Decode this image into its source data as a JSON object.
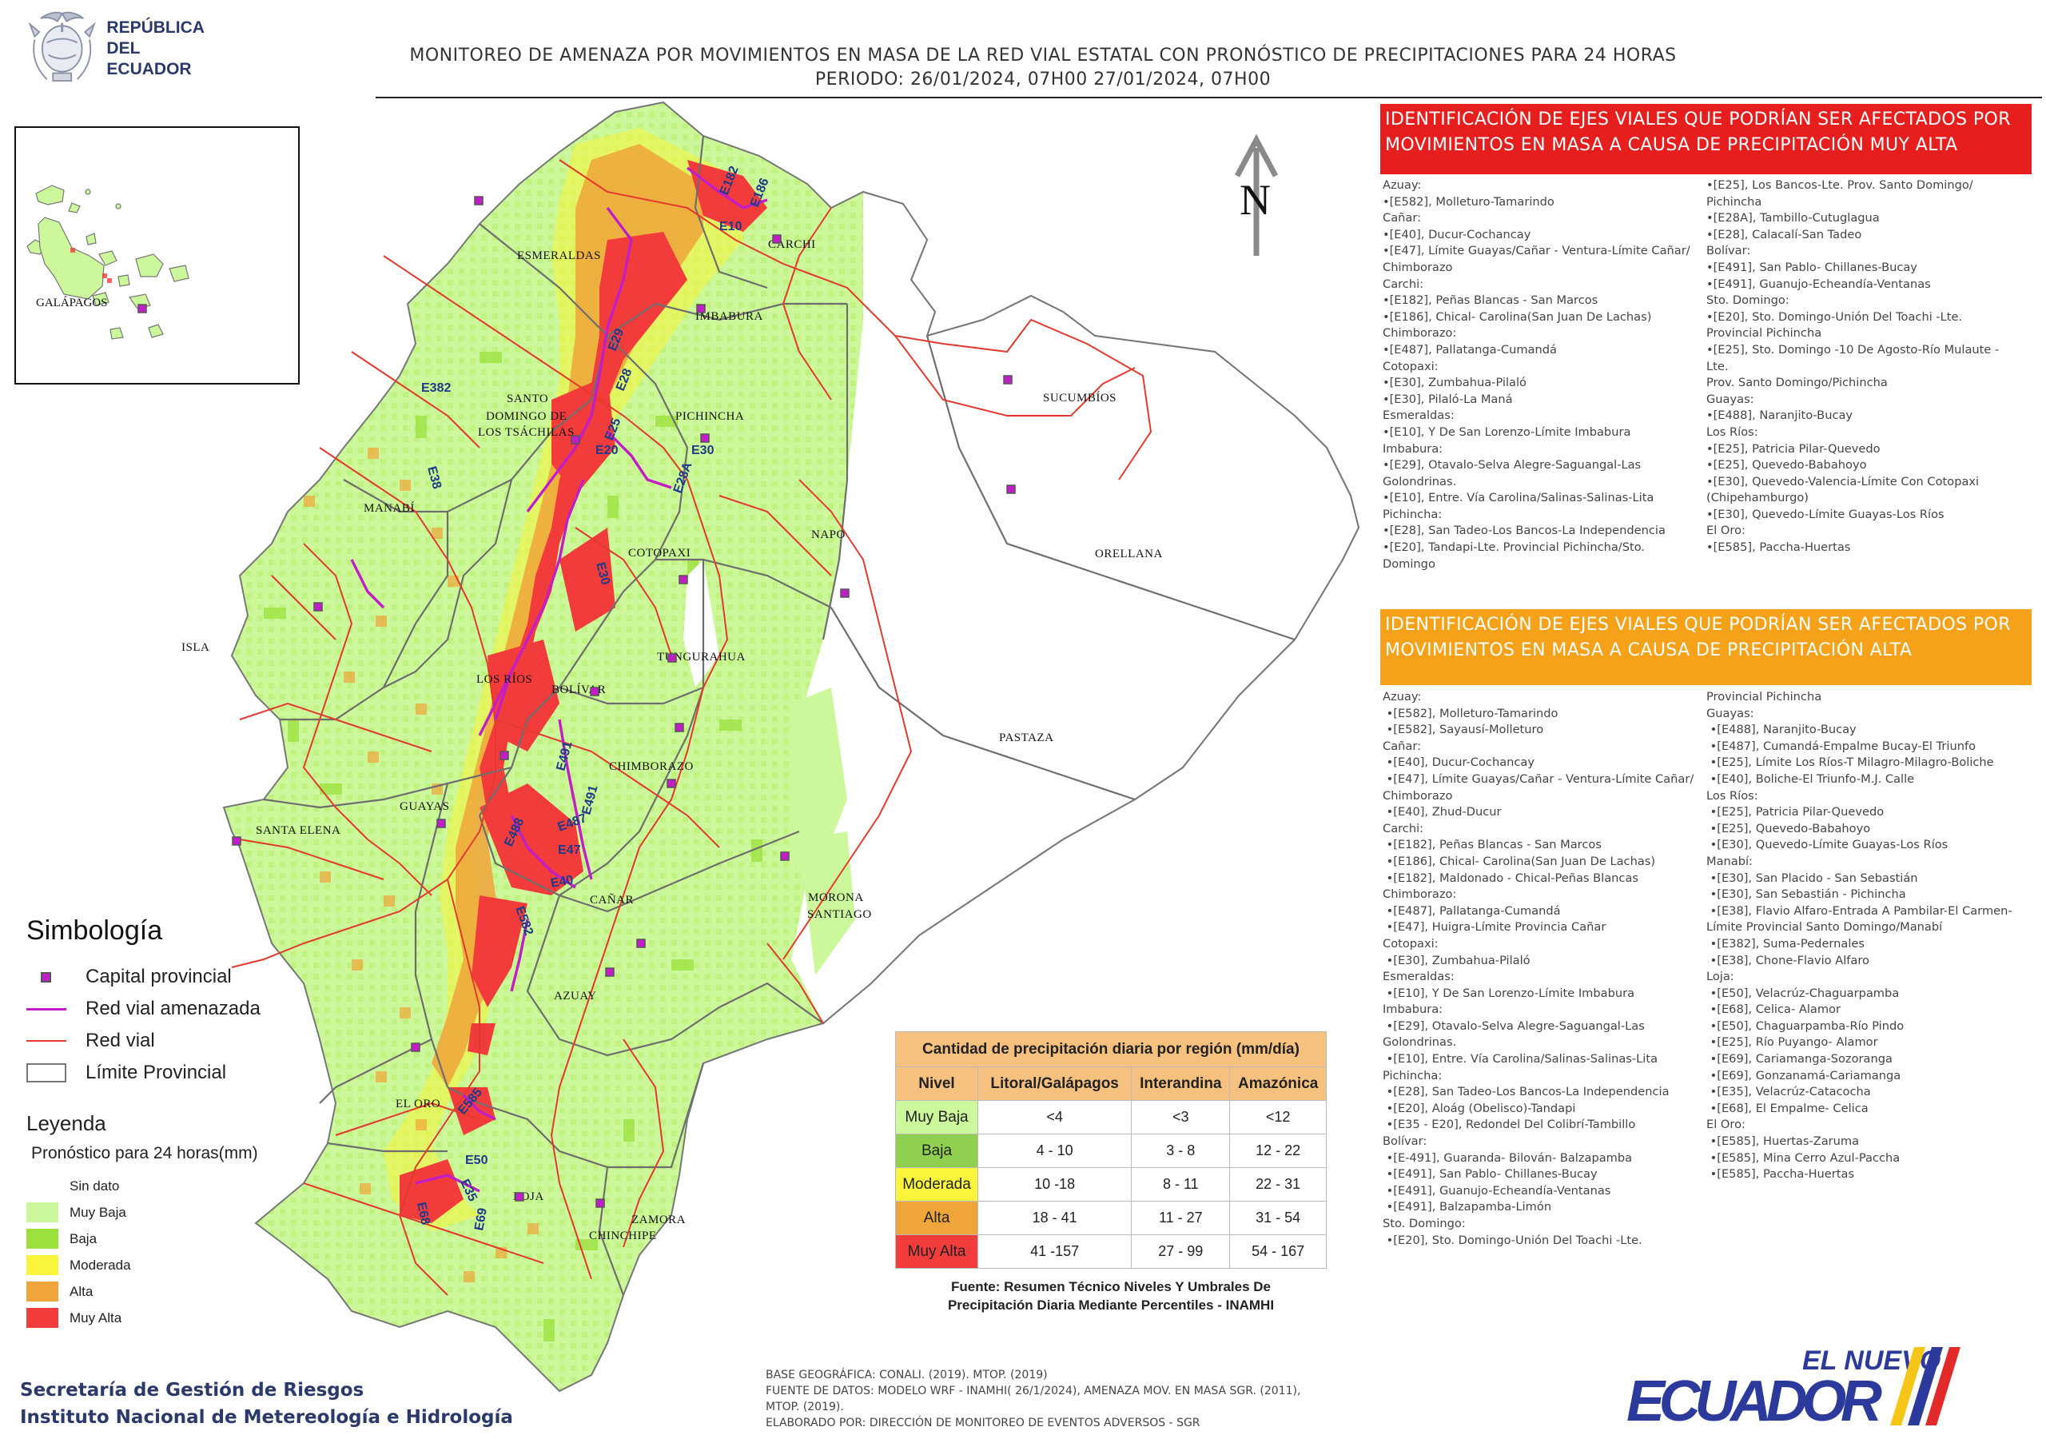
{
  "header": {
    "logo_line1": "REPÚBLICA",
    "logo_line2": "DEL ECUADOR",
    "title_line1": "MONITOREO DE AMENAZA POR MOVIMIENTOS EN MASA DE LA RED VIAL  ESTATAL  CON PRONÓSTICO  DE  PRECIPITACIONES PARA 24 HORAS",
    "title_line2": "PERIODO: 26/01/2024, 07H00 27/01/2024, 07H00"
  },
  "map": {
    "north_label": "N",
    "galapagos_label": "GALÁPAGOS",
    "isla_label": "ISLA",
    "provinces": [
      "ESMERALDAS",
      "CARCHI",
      "IMBABURA",
      "SUCUMBÍOS",
      "SANTO",
      "DOMINGO DE",
      "LOS TSÁCHILAS",
      "PICHINCHA",
      "NAPO",
      "ORELLANA",
      "MANABÍ",
      "COTOPAXI",
      "TUNGURAHUA",
      "LOS RÍOS",
      "BOLÍVAR",
      "SANTA ELENA",
      "PASTAZA",
      "GUAYAS",
      "CHIMBORAZO",
      "CAÑAR",
      "MORONA",
      "SANTIAGO",
      "AZUAY",
      "EL ORO",
      "LOJA",
      "ZAMORA",
      "CHINCHIPE"
    ],
    "road_labels": [
      "E182",
      "E186",
      "E10",
      "E29",
      "E28",
      "E382",
      "E25",
      "E38",
      "E20",
      "E30",
      "E28A",
      "E30",
      "E491",
      "E491",
      "E488",
      "E487",
      "E47",
      "E40",
      "E582",
      "E585",
      "E50",
      "E35",
      "E68",
      "E69"
    ]
  },
  "symbology": {
    "title": "Simbología",
    "items": [
      {
        "label": "Capital provincial",
        "kind": "capital"
      },
      {
        "label": "Red vial amenazada",
        "kind": "threat-road"
      },
      {
        "label": "Red vial",
        "kind": "road"
      },
      {
        "label": "Límite Provincial",
        "kind": "boundary"
      }
    ]
  },
  "legend": {
    "title": "Leyenda",
    "subtitle": "Pronóstico para 24 horas(mm)",
    "items": [
      {
        "label": "Sin dato",
        "color": "#ffffff"
      },
      {
        "label": "Muy Baja",
        "color": "#ccf79a"
      },
      {
        "label": "Baja",
        "color": "#9be03c"
      },
      {
        "label": "Moderada",
        "color": "#f8f53a"
      },
      {
        "label": "Alta",
        "color": "#f0a53a"
      },
      {
        "label": "Muy Alta",
        "color": "#f23c3c"
      }
    ]
  },
  "precip_table": {
    "caption": "Cantidad de precipitación diaria por región (mm/día)",
    "headers": [
      "Nivel",
      "Litoral/Galápagos",
      "Interandina",
      "Amazónica"
    ],
    "rows": [
      {
        "level": "Muy Baja",
        "color": "#ccf79a",
        "values": [
          "<4",
          "<3",
          "<12"
        ]
      },
      {
        "level": "Baja",
        "color": "#8fd14f",
        "values": [
          "4 - 10",
          "3 - 8",
          "12 - 22"
        ]
      },
      {
        "level": "Moderada",
        "color": "#f8f53a",
        "values": [
          "10 -18",
          "8 - 11",
          "22 - 31"
        ]
      },
      {
        "level": "Alta",
        "color": "#f0a53a",
        "values": [
          "18 - 41",
          "11 - 27",
          "31 - 54"
        ]
      },
      {
        "level": "Muy Alta",
        "color": "#f23c3c",
        "values": [
          "41 -157",
          "27 - 99",
          "54 - 167"
        ]
      }
    ],
    "source_line1": "Fuente: Resumen Técnico Niveles Y Umbrales De",
    "source_line2": "Precipitación Diaria Mediante Percentiles - INAMHI"
  },
  "footer": {
    "org_line1": "Secretaría de Gestión de Riesgos",
    "org_line2": "Instituto Nacional de Metereología e Hidrología",
    "base_line1": "BASE GEOGRÁFICA: CONALI. (2019). MTOP. (2019)",
    "base_line2": "FUENTE DE DATOS: MODELO WRF - INAMHI( 26/1/2024),  AMENAZA MOV. EN MASA SGR. (2011),",
    "base_line3": "MTOP. (2019).",
    "base_line4": "ELABORADO POR: DIRECCIÓN DE MONITOREO DE EVENTOS ADVERSOS - SGR",
    "brand_top": "EL NUEVO",
    "brand_main": "ECUADOR"
  },
  "panel_very_high": {
    "title": "IDENTIFICACIÓN DE EJES VIALES QUE PODRÍAN SER AFECTADOS POR MOVIMIENTOS EN MASA A CAUSA DE PRECIPITACIÓN MUY ALTA",
    "col1": [
      "Azuay:",
      "•[E582], Molleturo-Tamarindo",
      "Cañar:",
      "•[E40], Ducur-Cochancay",
      "•[E47], Límite Guayas/Cañar - Ventura-Límite Cañar/",
      "Chimborazo",
      "Carchi:",
      "•[E182], Peñas Blancas - San Marcos",
      "•[E186], Chical- Carolina(San Juan De Lachas)",
      "Chimborazo:",
      "•[E487], Pallatanga-Cumandá",
      "Cotopaxi:",
      "•[E30], Zumbahua-Pilaló",
      "•[E30], Pilaló-La Maná",
      "Esmeraldas:",
      "•[E10], Y De San Lorenzo-Límite Imbabura",
      "Imbabura:",
      "•[E29], Otavalo-Selva Alegre-Saguangal-Las",
      "Golondrinas.",
      "•[E10], Entre. Vía Carolina/Salinas-Salinas-Lita",
      "Pichincha:",
      "•[E28], San Tadeo-Los Bancos-La Independencia",
      "•[E20], Tandapi-Lte. Provincial Pichincha/Sto.",
      "Domingo"
    ],
    "col2": [
      "•[E25], Los Bancos-Lte. Prov. Santo Domingo/",
      "Pichincha",
      "•[E28A], Tambillo-Cutuglagua",
      "•[E28], Calacalí-San Tadeo",
      "Bolívar:",
      "•[E491], San Pablo- Chillanes-Bucay",
      "•[E491], Guanujo-Echeandía-Ventanas",
      "Sto. Domingo:",
      "•[E20], Sto. Domingo-Unión Del Toachi -Lte.",
      "Provincial Pichincha",
      "•[E25], Sto. Domingo -10 De Agosto-Río Mulaute - Lte.",
      "Prov. Santo Domingo/Pichincha",
      "Guayas:",
      "•[E488], Naranjito-Bucay",
      "Los Ríos:",
      "•[E25], Patricia Pilar-Quevedo",
      "•[E25], Quevedo-Babahoyo",
      "•[E30], Quevedo-Valencia-Límite Con Cotopaxi",
      "(Chipehamburgo)",
      "•[E30], Quevedo-Límite Guayas-Los Ríos",
      "El Oro:",
      "•[E585], Paccha-Huertas"
    ]
  },
  "panel_high": {
    "title": "IDENTIFICACIÓN DE EJES VIALES QUE PODRÍAN SER AFECTADOS POR MOVIMIENTOS EN MASA A CAUSA DE PRECIPITACIÓN  ALTA",
    "col1": [
      "Azuay:",
      " •[E582], Molleturo-Tamarindo",
      " •[E582], Sayausí-Molleturo",
      "Cañar:",
      " •[E40], Ducur-Cochancay",
      " •[E47], Límite Guayas/Cañar - Ventura-Límite Cañar/",
      "Chimborazo",
      " •[E40], Zhud-Ducur",
      "Carchi:",
      " •[E182], Peñas Blancas - San Marcos",
      " •[E186], Chical- Carolina(San Juan De Lachas)",
      " •[E182], Maldonado - Chical-Peñas Blancas",
      "Chimborazo:",
      " •[E487], Pallatanga-Cumandá",
      " •[E47], Huigra-Límite Provincia Cañar",
      "Cotopaxi:",
      " •[E30], Zumbahua-Pilaló",
      "Esmeraldas:",
      " •[E10], Y De San Lorenzo-Límite Imbabura",
      "Imbabura:",
      " •[E29], Otavalo-Selva Alegre-Saguangal-Las",
      "Golondrinas.",
      " •[E10], Entre. Vía Carolina/Salinas-Salinas-Lita",
      "Pichincha:",
      " •[E28], San Tadeo-Los Bancos-La Independencia",
      " •[E20], Aloág (Obelisco)-Tandapi",
      " •[E35 - E20], Redondel Del Colibrí-Tambillo",
      "Bolívar:",
      " •[E-491], Guaranda- Bilován- Balzapamba",
      " •[E491], San Pablo- Chillanes-Bucay",
      " •[E491], Guanujo-Echeandía-Ventanas",
      " •[E491], Balzapamba-Limón",
      "Sto. Domingo:",
      " •[E20], Sto. Domingo-Unión Del Toachi -Lte."
    ],
    "col2": [
      "Provincial Pichincha",
      "Guayas:",
      " •[E488], Naranjito-Bucay",
      " •[E487], Cumandá-Empalme Bucay-El Triunfo",
      " •[E25], Límite Los Ríos-T Milagro-Milagro-Boliche",
      " •[E40], Boliche-El Triunfo-M.J. Calle",
      "Los Ríos:",
      " •[E25], Patricia Pilar-Quevedo",
      " •[E25], Quevedo-Babahoyo",
      " •[E30], Quevedo-Límite Guayas-Los Ríos",
      "Manabí:",
      " •[E30], San Placido - San Sebastián",
      " •[E30], San Sebastián - Pichincha",
      " •[E38], Flavio Alfaro-Entrada A Pambilar-El Carmen-",
      "Límite Provincial Santo Domingo/Manabí",
      " •[E382], Suma-Pedernales",
      " •[E38], Chone-Flavio Alfaro",
      "Loja:",
      " •[E50], Velacrúz-Chaguarpamba",
      " •[E68], Celica- Alamor",
      " •[E50], Chaguarpamba-Río Pindo",
      " •[E25], Río Puyango- Alamor",
      " •[E69], Cariamanga-Sozoranga",
      " •[E69], Gonzanamá-Cariamanga",
      " •[E35], Velacrúz-Catacocha",
      " •[E68], El Empalme- Celica",
      "El Oro:",
      " •[E585], Huertas-Zaruma",
      " •[E585], Mina Cerro Azul-Paccha",
      " •[E585], Paccha-Huertas"
    ]
  }
}
